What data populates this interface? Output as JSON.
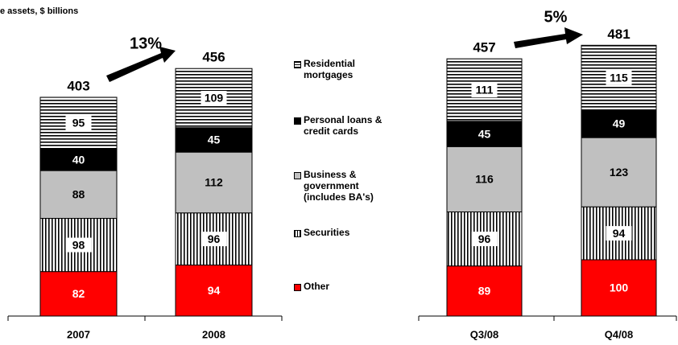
{
  "chart_data": [
    {
      "type": "bar",
      "stacked": true,
      "title": "e assets, $ billions",
      "legend": "right",
      "categories": [
        "2007",
        "2008"
      ],
      "series": [
        {
          "name": "Other",
          "color": "#ff0000",
          "values": [
            82,
            94
          ]
        },
        {
          "name": "Securities",
          "color": "#ffffff",
          "pattern": "vertical-stripes",
          "values": [
            98,
            96
          ]
        },
        {
          "name": "Business & government (includes BA's)",
          "color": "#c0c0c0",
          "values": [
            88,
            112
          ]
        },
        {
          "name": "Personal loans & credit cards",
          "color": "#000000",
          "values": [
            40,
            45
          ]
        },
        {
          "name": "Residential mortgages",
          "color": "#ffffff",
          "pattern": "horizontal-stripes",
          "values": [
            95,
            109
          ]
        }
      ],
      "totals": [
        403,
        456
      ],
      "annotation": "13%"
    },
    {
      "type": "bar",
      "stacked": true,
      "categories": [
        "Q3/08",
        "Q4/08"
      ],
      "series": [
        {
          "name": "Other",
          "color": "#ff0000",
          "values": [
            89,
            100
          ]
        },
        {
          "name": "Securities",
          "color": "#ffffff",
          "pattern": "vertical-stripes",
          "values": [
            96,
            94
          ]
        },
        {
          "name": "Business & government (includes BA's)",
          "color": "#c0c0c0",
          "values": [
            116,
            123
          ]
        },
        {
          "name": "Personal loans & credit cards",
          "color": "#000000",
          "values": [
            45,
            49
          ]
        },
        {
          "name": "Residential mortgages",
          "color": "#ffffff",
          "pattern": "horizontal-stripes",
          "values": [
            111,
            115
          ]
        }
      ],
      "totals": [
        457,
        481
      ],
      "annotation": "5%"
    }
  ]
}
